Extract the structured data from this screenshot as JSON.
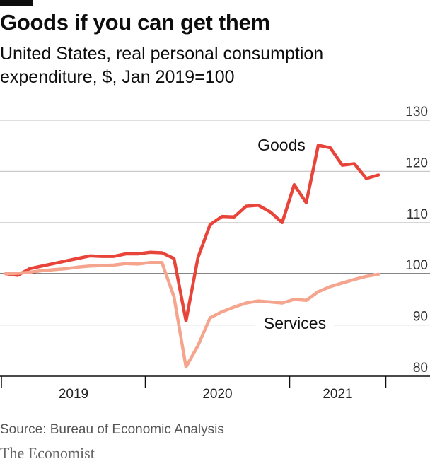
{
  "title": "Goods if you can get them",
  "subtitle": "United States, real personal consumption expenditure, $, Jan 2019=100",
  "source": "Source: Bureau of Economic Analysis",
  "brand": "The Economist",
  "colors": {
    "goods": "#e8443a",
    "services": "#f5a58e",
    "grid": "#c9c9c9",
    "axis": "#0d0d0d"
  },
  "chart_data": {
    "type": "line",
    "x_start": "2019-01",
    "x_end": "2021-08",
    "period": "monthly",
    "ylim": [
      80,
      130
    ],
    "yticks": [
      80,
      90,
      100,
      110,
      120,
      130
    ],
    "baseline": 100,
    "year_labels": [
      "2019",
      "2020",
      "2021"
    ],
    "grid": true,
    "series": [
      {
        "name": "Goods",
        "values": [
          100,
          99.7,
          101,
          101.5,
          102,
          102.5,
          103,
          103.5,
          103.4,
          103.4,
          103.9,
          103.9,
          104.2,
          104.1,
          103,
          90.8,
          103.2,
          109.6,
          111.2,
          111.1,
          113.2,
          113.4,
          112.1,
          110,
          117.4,
          113.9,
          125.1,
          124.6,
          121.2,
          121.5,
          118.6,
          119.3
        ]
      },
      {
        "name": "Services",
        "values": [
          100,
          100.1,
          100.3,
          100.6,
          100.8,
          101,
          101.3,
          101.5,
          101.6,
          101.7,
          102,
          101.9,
          102.2,
          102.2,
          95.5,
          81.8,
          86,
          91.4,
          92.6,
          93.5,
          94.3,
          94.7,
          94.5,
          94.3,
          95,
          94.8,
          96.5,
          97.5,
          98.2,
          98.9,
          99.5,
          99.9
        ]
      }
    ]
  }
}
